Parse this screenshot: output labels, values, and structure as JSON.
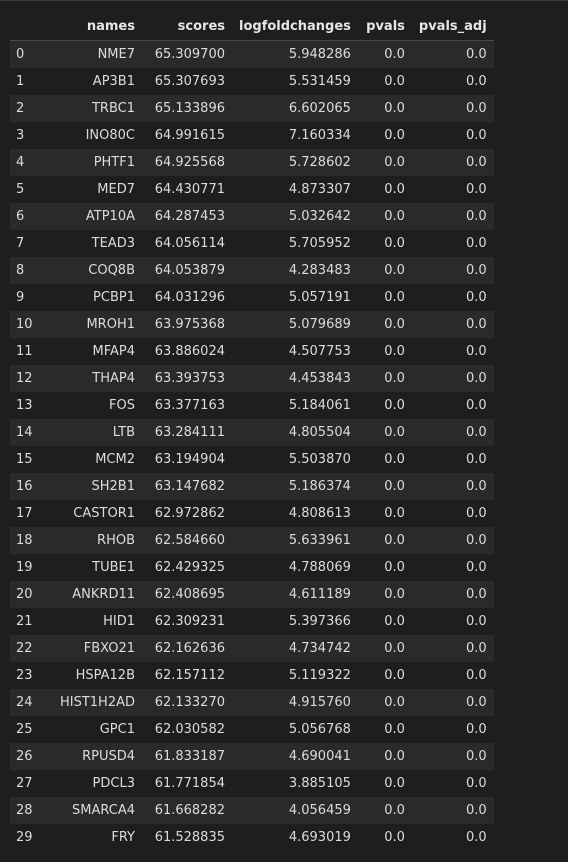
{
  "table": {
    "columns": [
      "",
      "names",
      "scores",
      "logfoldchanges",
      "pvals",
      "pvals_adj"
    ],
    "rows": [
      [
        "0",
        "NME7",
        "65.309700",
        "5.948286",
        "0.0",
        "0.0"
      ],
      [
        "1",
        "AP3B1",
        "65.307693",
        "5.531459",
        "0.0",
        "0.0"
      ],
      [
        "2",
        "TRBC1",
        "65.133896",
        "6.602065",
        "0.0",
        "0.0"
      ],
      [
        "3",
        "INO80C",
        "64.991615",
        "7.160334",
        "0.0",
        "0.0"
      ],
      [
        "4",
        "PHTF1",
        "64.925568",
        "5.728602",
        "0.0",
        "0.0"
      ],
      [
        "5",
        "MED7",
        "64.430771",
        "4.873307",
        "0.0",
        "0.0"
      ],
      [
        "6",
        "ATP10A",
        "64.287453",
        "5.032642",
        "0.0",
        "0.0"
      ],
      [
        "7",
        "TEAD3",
        "64.056114",
        "5.705952",
        "0.0",
        "0.0"
      ],
      [
        "8",
        "COQ8B",
        "64.053879",
        "4.283483",
        "0.0",
        "0.0"
      ],
      [
        "9",
        "PCBP1",
        "64.031296",
        "5.057191",
        "0.0",
        "0.0"
      ],
      [
        "10",
        "MROH1",
        "63.975368",
        "5.079689",
        "0.0",
        "0.0"
      ],
      [
        "11",
        "MFAP4",
        "63.886024",
        "4.507753",
        "0.0",
        "0.0"
      ],
      [
        "12",
        "THAP4",
        "63.393753",
        "4.453843",
        "0.0",
        "0.0"
      ],
      [
        "13",
        "FOS",
        "63.377163",
        "5.184061",
        "0.0",
        "0.0"
      ],
      [
        "14",
        "LTB",
        "63.284111",
        "4.805504",
        "0.0",
        "0.0"
      ],
      [
        "15",
        "MCM2",
        "63.194904",
        "5.503870",
        "0.0",
        "0.0"
      ],
      [
        "16",
        "SH2B1",
        "63.147682",
        "5.186374",
        "0.0",
        "0.0"
      ],
      [
        "17",
        "CASTOR1",
        "62.972862",
        "4.808613",
        "0.0",
        "0.0"
      ],
      [
        "18",
        "RHOB",
        "62.584660",
        "5.633961",
        "0.0",
        "0.0"
      ],
      [
        "19",
        "TUBE1",
        "62.429325",
        "4.788069",
        "0.0",
        "0.0"
      ],
      [
        "20",
        "ANKRD11",
        "62.408695",
        "4.611189",
        "0.0",
        "0.0"
      ],
      [
        "21",
        "HID1",
        "62.309231",
        "5.397366",
        "0.0",
        "0.0"
      ],
      [
        "22",
        "FBXO21",
        "62.162636",
        "4.734742",
        "0.0",
        "0.0"
      ],
      [
        "23",
        "HSPA12B",
        "62.157112",
        "5.119322",
        "0.0",
        "0.0"
      ],
      [
        "24",
        "HIST1H2AD",
        "62.133270",
        "4.915760",
        "0.0",
        "0.0"
      ],
      [
        "25",
        "GPC1",
        "62.030582",
        "5.056768",
        "0.0",
        "0.0"
      ],
      [
        "26",
        "RPUSD4",
        "61.833187",
        "4.690041",
        "0.0",
        "0.0"
      ],
      [
        "27",
        "PDCL3",
        "61.771854",
        "3.885105",
        "0.0",
        "0.0"
      ],
      [
        "28",
        "SMARCA4",
        "61.668282",
        "4.056459",
        "0.0",
        "0.0"
      ],
      [
        "29",
        "FRY",
        "61.528835",
        "4.693019",
        "0.0",
        "0.0"
      ]
    ]
  }
}
